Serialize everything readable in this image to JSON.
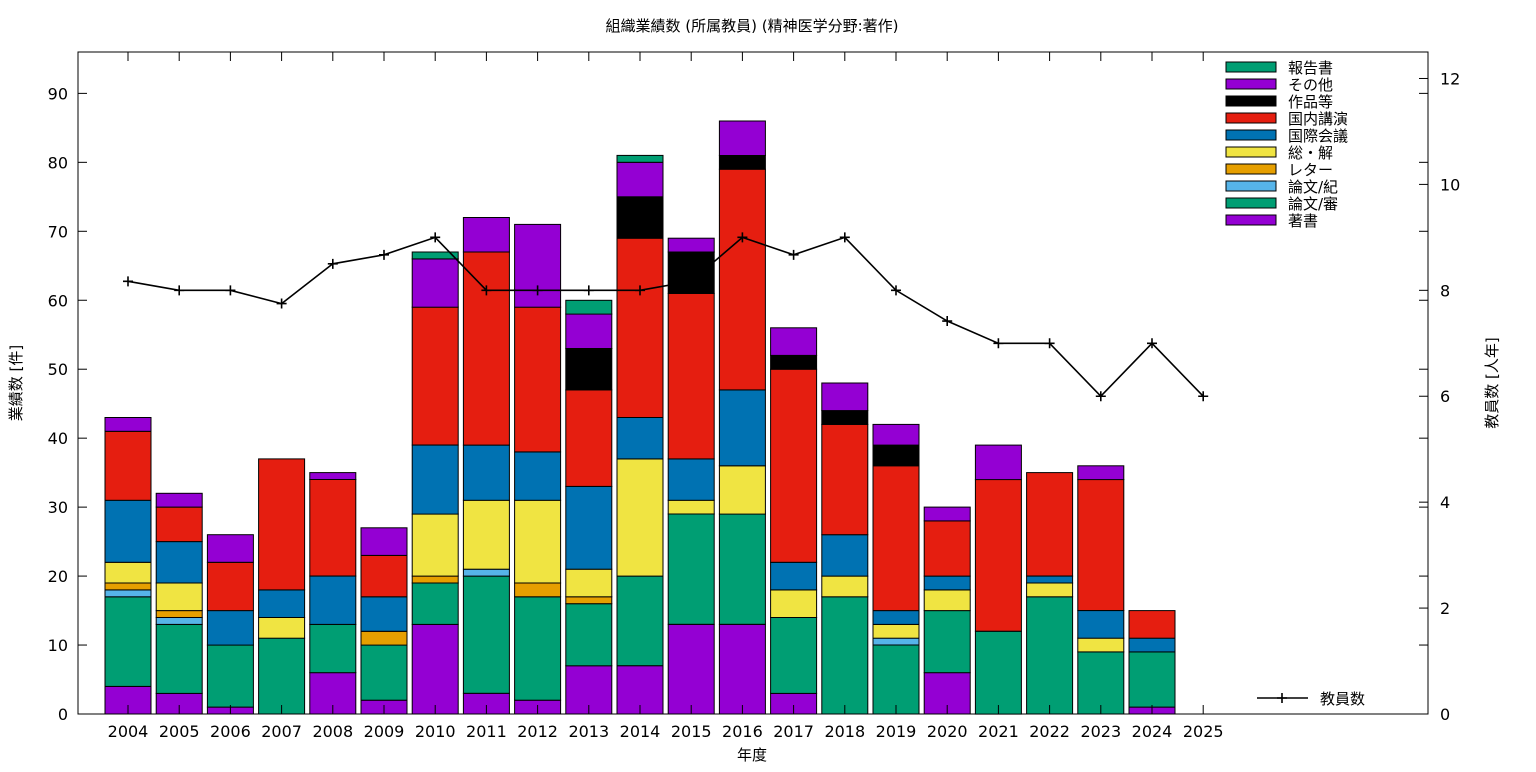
{
  "chart_data": {
    "type": "bar",
    "stacked": true,
    "title": "組織業績数 (所属教員) (精神医学分野:著作)",
    "xlabel": "年度",
    "ylabel": "業績数 [件]",
    "y2label": "教員数 [人年]",
    "ylim": [
      0,
      96
    ],
    "y2lim": [
      0,
      12.5
    ],
    "yticks": [
      0,
      10,
      20,
      30,
      40,
      50,
      60,
      70,
      80,
      90
    ],
    "y2ticks": [
      0,
      2,
      4,
      6,
      8,
      10,
      12
    ],
    "grid": false,
    "legend_position": "top-right",
    "categories": [
      "2004",
      "2005",
      "2006",
      "2007",
      "2008",
      "2009",
      "2010",
      "2011",
      "2012",
      "2013",
      "2014",
      "2015",
      "2016",
      "2017",
      "2018",
      "2019",
      "2020",
      "2021",
      "2022",
      "2023",
      "2024",
      "2025"
    ],
    "series": [
      {
        "name": "著書",
        "color": "#9400d3",
        "values": [
          4,
          3,
          1,
          0,
          6,
          2,
          13,
          3,
          2,
          7,
          7,
          13,
          13,
          3,
          0,
          0,
          6,
          0,
          0,
          0,
          1,
          0
        ]
      },
      {
        "name": "論文/審",
        "color": "#009e73",
        "values": [
          13,
          10,
          9,
          11,
          7,
          8,
          6,
          17,
          15,
          9,
          13,
          16,
          16,
          11,
          17,
          10,
          9,
          12,
          17,
          9,
          8,
          0
        ]
      },
      {
        "name": "論文/紀",
        "color": "#56b4e9",
        "values": [
          1,
          1,
          0,
          0,
          0,
          0,
          0,
          1,
          0,
          0,
          0,
          0,
          0,
          0,
          0,
          1,
          0,
          0,
          0,
          0,
          0,
          0
        ]
      },
      {
        "name": "レター",
        "color": "#e69f00",
        "values": [
          1,
          1,
          0,
          0,
          0,
          2,
          1,
          0,
          2,
          1,
          0,
          0,
          0,
          0,
          0,
          0,
          0,
          0,
          0,
          0,
          0,
          0
        ]
      },
      {
        "name": "総・解",
        "color": "#f0e442",
        "values": [
          3,
          4,
          0,
          3,
          0,
          0,
          9,
          10,
          12,
          4,
          17,
          2,
          7,
          4,
          3,
          2,
          3,
          0,
          2,
          2,
          0,
          0
        ]
      },
      {
        "name": "国際会議",
        "color": "#0072b2",
        "values": [
          9,
          6,
          5,
          4,
          7,
          5,
          10,
          8,
          7,
          12,
          6,
          6,
          11,
          4,
          6,
          2,
          2,
          0,
          1,
          4,
          2,
          0
        ]
      },
      {
        "name": "国内講演",
        "color": "#e51e10",
        "values": [
          10,
          5,
          7,
          19,
          14,
          6,
          20,
          28,
          21,
          14,
          26,
          24,
          32,
          28,
          16,
          21,
          8,
          22,
          15,
          19,
          4,
          0
        ]
      },
      {
        "name": "作品等",
        "color": "#000000",
        "values": [
          0,
          0,
          0,
          0,
          0,
          0,
          0,
          0,
          0,
          6,
          6,
          6,
          2,
          2,
          2,
          3,
          0,
          0,
          0,
          0,
          0,
          0
        ]
      },
      {
        "name": "その他",
        "color": "#9400d3",
        "values": [
          2,
          2,
          4,
          0,
          1,
          4,
          7,
          5,
          12,
          5,
          5,
          2,
          5,
          4,
          4,
          3,
          2,
          5,
          0,
          2,
          0,
          0
        ]
      },
      {
        "name": "報告書",
        "color": "#009e73",
        "values": [
          0,
          0,
          0,
          0,
          0,
          0,
          1,
          0,
          0,
          2,
          1,
          0,
          0,
          0,
          0,
          0,
          0,
          0,
          0,
          0,
          0,
          0
        ]
      }
    ],
    "line_series": {
      "name": "教員数",
      "axis": "y2",
      "color": "#000000",
      "values": [
        8.17,
        8,
        8,
        7.75,
        8.5,
        8.67,
        9,
        8,
        8,
        8,
        8,
        8.17,
        9,
        8.67,
        9,
        8,
        7.42,
        7,
        7,
        6,
        7,
        6
      ]
    }
  }
}
